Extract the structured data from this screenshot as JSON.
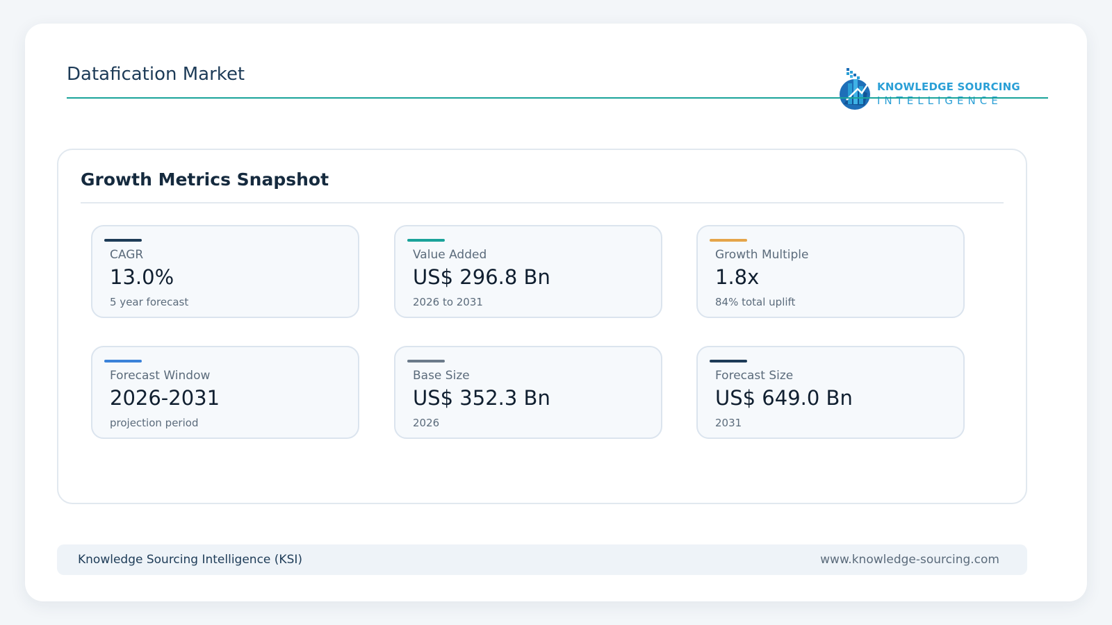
{
  "header": {
    "title": "Datafication Market",
    "logo": {
      "line1": "KNOWLEDGE SOURCING",
      "line2": "INTELLIGENCE",
      "icon": "ksi-logo-icon"
    }
  },
  "panel": {
    "title": "Growth Metrics Snapshot",
    "metrics": [
      {
        "label": "CAGR",
        "value": "13.0%",
        "sub": "5 year forecast",
        "accent": "#1d3b57"
      },
      {
        "label": "Value Added",
        "value": "US$ 296.8 Bn",
        "sub": "2026 to 2031",
        "accent": "#1aa39a"
      },
      {
        "label": "Growth Multiple",
        "value": "1.8x",
        "sub": "84% total uplift",
        "accent": "#e5a54a"
      },
      {
        "label": "Forecast Window",
        "value": "2026-2031",
        "sub": "projection period",
        "accent": "#3b82d9"
      },
      {
        "label": "Base Size",
        "value": "US$ 352.3 Bn",
        "sub": "2026",
        "accent": "#6b7a8a"
      },
      {
        "label": "Forecast Size",
        "value": "US$ 649.0 Bn",
        "sub": "2031",
        "accent": "#1d3b57"
      }
    ]
  },
  "footer": {
    "left": "Knowledge Sourcing Intelligence (KSI)",
    "right": "www.knowledge-sourcing.com"
  },
  "colors": {
    "brand_teal": "#1aa39a",
    "brand_navy": "#1d3b57",
    "logo_blue": "#2a9fd6"
  }
}
